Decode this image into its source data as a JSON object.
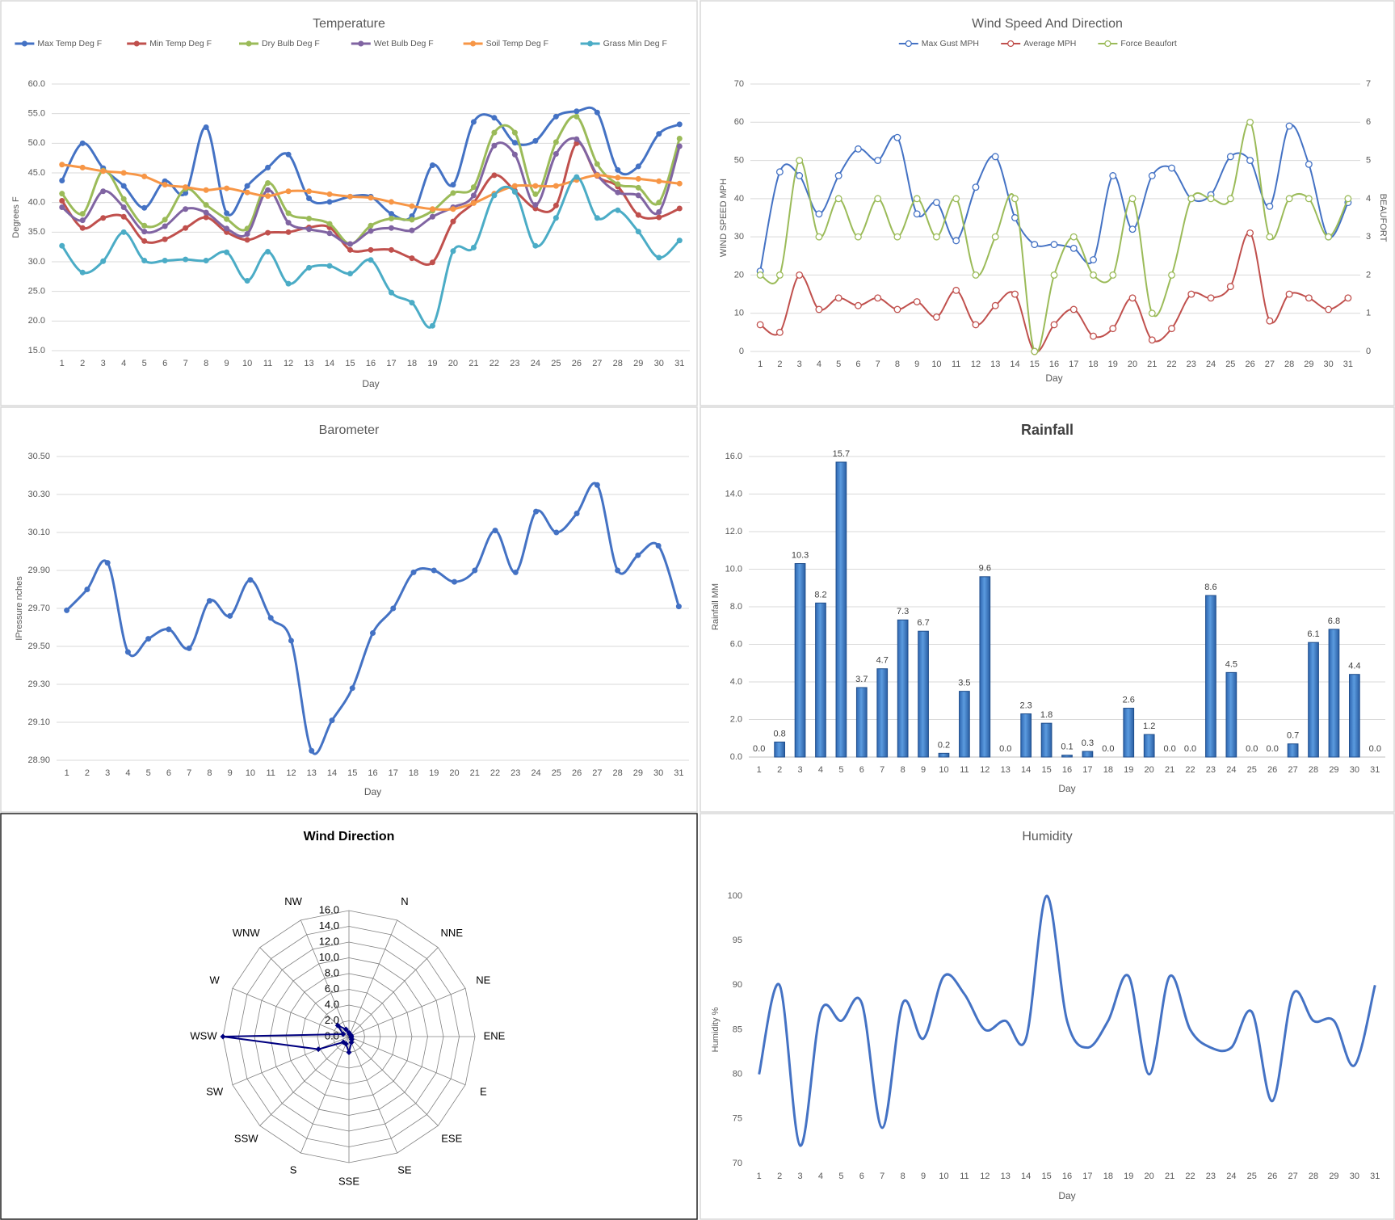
{
  "chart_data": [
    {
      "type": "line",
      "title": "Temperature",
      "xlabel": "Day",
      "ylabel": "Degrees F",
      "legend": "top",
      "grid": true,
      "markers": "filled",
      "categories": [
        1,
        2,
        3,
        4,
        5,
        6,
        7,
        8,
        9,
        10,
        11,
        12,
        13,
        14,
        15,
        16,
        17,
        18,
        19,
        20,
        21,
        22,
        23,
        24,
        25,
        26,
        27,
        28,
        29,
        30,
        31
      ],
      "ylim": [
        15,
        60
      ],
      "yticks": [
        {
          "value": 15,
          "label": "15.0"
        },
        {
          "value": 20,
          "label": "20.0"
        },
        {
          "value": 25,
          "label": "25.0"
        },
        {
          "value": 30,
          "label": "30.0"
        },
        {
          "value": 35,
          "label": "35.0"
        },
        {
          "value": 40,
          "label": "40.0"
        },
        {
          "value": 45,
          "label": "45.0"
        },
        {
          "value": 50,
          "label": "50.0"
        },
        {
          "value": 55,
          "label": "55.0"
        },
        {
          "value": 60,
          "label": "60.0"
        }
      ],
      "series": [
        {
          "name": "Max Temp Deg F",
          "color": "#4472c4",
          "values": [
            43.7,
            50.0,
            45.8,
            42.8,
            39.1,
            43.6,
            41.6,
            52.7,
            38.2,
            42.8,
            45.9,
            48.1,
            40.7,
            40.1,
            41.0,
            41.0,
            38.1,
            37.7,
            46.3,
            43.0,
            53.6,
            54.3,
            50.1,
            50.4,
            54.5,
            55.4,
            55.2,
            45.5,
            46.1,
            51.6,
            53.2
          ]
        },
        {
          "name": "Min Temp Deg F",
          "color": "#c0504d",
          "values": [
            40.3,
            35.7,
            37.4,
            37.6,
            33.5,
            33.8,
            35.7,
            37.5,
            35.0,
            33.7,
            34.9,
            35.0,
            35.8,
            35.8,
            32.0,
            32.0,
            32.0,
            30.6,
            29.9,
            36.8,
            40.0,
            44.6,
            42.0,
            39.0,
            39.5,
            50.0,
            44.5,
            42.7,
            37.9,
            37.5,
            39.0
          ]
        },
        {
          "name": "Dry Bulb Deg F",
          "color": "#9bbb59",
          "values": [
            41.5,
            38.1,
            45.4,
            40.6,
            36.1,
            37.1,
            42.3,
            39.6,
            37.2,
            35.6,
            43.3,
            38.2,
            37.3,
            36.4,
            33.0,
            36.1,
            37.3,
            37.1,
            38.6,
            41.6,
            42.6,
            51.8,
            51.8,
            41.4,
            50.2,
            54.5,
            46.5,
            43.1,
            42.5,
            40.0,
            50.8
          ]
        },
        {
          "name": "Wet Bulb Deg F",
          "color": "#8064a2",
          "values": [
            39.2,
            37.0,
            41.9,
            39.2,
            35.1,
            36.0,
            38.9,
            38.3,
            35.6,
            34.7,
            42.1,
            36.6,
            35.5,
            34.8,
            33.0,
            35.2,
            35.7,
            35.3,
            37.6,
            39.2,
            41.2,
            49.6,
            48.1,
            39.6,
            48.2,
            50.7,
            44.7,
            41.7,
            41.2,
            38.4,
            49.5
          ]
        },
        {
          "name": "Soil Temp Deg F",
          "color": "#f79646",
          "values": [
            46.4,
            45.9,
            45.3,
            45.0,
            44.4,
            43.0,
            42.6,
            42.1,
            42.4,
            41.7,
            41.1,
            41.9,
            41.9,
            41.4,
            41.0,
            40.8,
            40.1,
            39.4,
            38.9,
            38.9,
            39.9,
            41.5,
            42.8,
            42.8,
            42.8,
            43.8,
            44.6,
            44.2,
            44.0,
            43.6,
            43.2
          ]
        },
        {
          "name": "Grass Min Deg F",
          "color": "#4bacc6",
          "values": [
            32.7,
            28.2,
            30.1,
            35.0,
            30.2,
            30.2,
            30.4,
            30.2,
            31.6,
            26.8,
            31.7,
            26.3,
            29.0,
            29.3,
            28.0,
            30.3,
            24.8,
            23.1,
            19.2,
            31.8,
            32.4,
            41.2,
            41.8,
            32.7,
            37.4,
            44.3,
            37.4,
            38.7,
            35.1,
            30.7,
            33.6
          ]
        }
      ]
    },
    {
      "type": "line",
      "title": "Wind Speed And Direction",
      "xlabel": "Day",
      "ylabel": "WIND SPEED MPH",
      "y2label": "BEAUFORT",
      "legend": "top",
      "grid": true,
      "markers": "open",
      "categories": [
        1,
        2,
        3,
        4,
        5,
        6,
        7,
        8,
        9,
        10,
        11,
        12,
        13,
        14,
        15,
        16,
        17,
        18,
        19,
        20,
        21,
        22,
        23,
        24,
        25,
        26,
        27,
        28,
        29,
        30,
        31
      ],
      "ylim": [
        0,
        70
      ],
      "yticks": [
        0,
        10,
        20,
        30,
        40,
        50,
        60,
        70
      ],
      "y2lim": [
        0,
        7
      ],
      "y2ticks": [
        0,
        1,
        2,
        3,
        4,
        5,
        6,
        7
      ],
      "series": [
        {
          "name": "Max Gust MPH",
          "color": "#4472c4",
          "values": [
            21,
            47,
            46,
            36,
            46,
            53,
            50,
            56,
            36,
            39,
            29,
            43,
            51,
            35,
            28,
            28,
            27,
            24,
            46,
            32,
            46,
            48,
            40,
            41,
            51,
            50,
            38,
            59,
            49,
            30,
            39
          ]
        },
        {
          "name": "Average MPH",
          "color": "#c0504d",
          "values": [
            7,
            5,
            20,
            11,
            14,
            12,
            14,
            11,
            13,
            9,
            16,
            7,
            12,
            15,
            0,
            7,
            11,
            4,
            6,
            14,
            3,
            6,
            15,
            14,
            17,
            31,
            8,
            15,
            14,
            11,
            14
          ]
        },
        {
          "name": "Force Beaufort",
          "color": "#9bbb59",
          "axis": "y2",
          "values": [
            2,
            2,
            5,
            3,
            4,
            3,
            4,
            3,
            4,
            3,
            4,
            2,
            3,
            4,
            0,
            2,
            3,
            2,
            2,
            4,
            1,
            2,
            4,
            4,
            4,
            6,
            3,
            4,
            4,
            3,
            4
          ]
        }
      ]
    },
    {
      "type": "line",
      "title": "Barometer",
      "xlabel": "Day",
      "ylabel": "IPressure nches",
      "grid": true,
      "markers": "filled",
      "color": "#4472c4",
      "categories": [
        1,
        2,
        3,
        4,
        5,
        6,
        7,
        8,
        9,
        10,
        11,
        12,
        13,
        14,
        15,
        16,
        17,
        18,
        19,
        20,
        21,
        22,
        23,
        24,
        25,
        26,
        27,
        28,
        29,
        30,
        31
      ],
      "values": [
        29.69,
        29.8,
        29.94,
        29.47,
        29.54,
        29.59,
        29.49,
        29.74,
        29.66,
        29.85,
        29.65,
        29.53,
        28.95,
        29.11,
        29.28,
        29.57,
        29.7,
        29.89,
        29.9,
        29.84,
        29.9,
        30.11,
        29.89,
        30.21,
        30.1,
        30.2,
        30.35,
        29.9,
        29.98,
        30.03,
        29.71
      ],
      "ylim": [
        28.9,
        30.5
      ],
      "yticks": [
        {
          "value": 28.9,
          "label": "28.90"
        },
        {
          "value": 29.1,
          "label": "29.10"
        },
        {
          "value": 29.3,
          "label": "29.30"
        },
        {
          "value": 29.5,
          "label": "29.50"
        },
        {
          "value": 29.7,
          "label": "29.70"
        },
        {
          "value": 29.9,
          "label": "29.90"
        },
        {
          "value": 30.1,
          "label": "30.10"
        },
        {
          "value": 30.3,
          "label": "30.30"
        },
        {
          "value": 30.5,
          "label": "30.50"
        }
      ]
    },
    {
      "type": "bar",
      "title": "Rainfall",
      "xlabel": "Day",
      "ylabel": "Rainfall MM",
      "grid": true,
      "color": "#4a86d0",
      "categories": [
        1,
        2,
        3,
        4,
        5,
        6,
        7,
        8,
        9,
        10,
        11,
        12,
        13,
        14,
        15,
        16,
        17,
        18,
        19,
        20,
        21,
        22,
        23,
        24,
        25,
        26,
        27,
        28,
        29,
        30,
        31
      ],
      "values": [
        0,
        0.8,
        10.3,
        8.2,
        15.7,
        3.7,
        4.7,
        7.3,
        6.7,
        0.2,
        3.5,
        9.6,
        0,
        2.3,
        1.8,
        0.1,
        0.3,
        0,
        2.6,
        1.2,
        0,
        0,
        8.6,
        4.5,
        0,
        0,
        0.7,
        6.1,
        6.8,
        4.4,
        0
      ],
      "value_labels": [
        "0.0",
        "0.8",
        "10.3",
        "8.2",
        "15.7",
        "3.7",
        "4.7",
        "7.3",
        "6.7",
        "0.2",
        "3.5",
        "9.6",
        "0.0",
        "2.3",
        "1.8",
        "0.1",
        "0.3",
        "0.0",
        "2.6",
        "1.2",
        "0.0",
        "0.0",
        "8.6",
        "4.5",
        "0.0",
        "0.0",
        "0.7",
        "6.1",
        "6.8",
        "4.4",
        "0.0"
      ],
      "ylim": [
        0,
        16
      ],
      "yticks": [
        {
          "value": 0,
          "label": "0.0"
        },
        {
          "value": 2,
          "label": "2.0"
        },
        {
          "value": 4,
          "label": "4.0"
        },
        {
          "value": 6,
          "label": "6.0"
        },
        {
          "value": 8,
          "label": "8.0"
        },
        {
          "value": 10,
          "label": "10.0"
        },
        {
          "value": 12,
          "label": "12.0"
        },
        {
          "value": 14,
          "label": "14.0"
        },
        {
          "value": 16,
          "label": "16.0"
        }
      ]
    },
    {
      "type": "radar",
      "title": "Wind Direction",
      "color": "#000080",
      "categories": [
        null,
        "N",
        "NNE",
        "NE",
        "ENE",
        "E",
        "ESE",
        "SE",
        "SSE",
        "S",
        "SSW",
        "SW",
        "WSW",
        "W",
        "WNW",
        "NW"
      ],
      "values": [
        0.5,
        0.3,
        0.3,
        0.3,
        0.3,
        0.3,
        0.5,
        0.8,
        2.0,
        1.0,
        1.0,
        4.2,
        16.0,
        0.8,
        2.0,
        1.0
      ],
      "rlim": [
        0,
        16
      ],
      "rticks": [
        {
          "value": 0,
          "label": "0.0"
        },
        {
          "value": 2,
          "label": "2.0"
        },
        {
          "value": 4,
          "label": "4.0"
        },
        {
          "value": 6,
          "label": "6.0"
        },
        {
          "value": 8,
          "label": "8.0"
        },
        {
          "value": 10,
          "label": "10.0"
        },
        {
          "value": 12,
          "label": "12.0"
        },
        {
          "value": 14,
          "label": "14.0"
        },
        {
          "value": 16,
          "label": "16.0"
        }
      ]
    },
    {
      "type": "line",
      "title": "Humidity",
      "xlabel": "Day",
      "ylabel": "Humidity %",
      "grid": false,
      "markers": "none",
      "color": "#4472c4",
      "categories": [
        1,
        2,
        3,
        4,
        5,
        6,
        7,
        8,
        9,
        10,
        11,
        12,
        13,
        14,
        15,
        16,
        17,
        18,
        19,
        20,
        21,
        22,
        23,
        24,
        25,
        26,
        27,
        28,
        29,
        30,
        31
      ],
      "values": [
        80,
        90,
        72,
        87,
        86,
        88,
        74,
        88,
        84,
        91,
        89,
        85,
        86,
        84,
        100,
        86,
        83,
        86,
        91,
        80,
        91,
        85,
        83,
        83,
        87,
        77,
        89,
        86,
        86,
        81,
        90
      ],
      "ylim": [
        70,
        100
      ],
      "yticks": [
        70,
        75,
        80,
        85,
        90,
        95,
        100
      ]
    }
  ]
}
